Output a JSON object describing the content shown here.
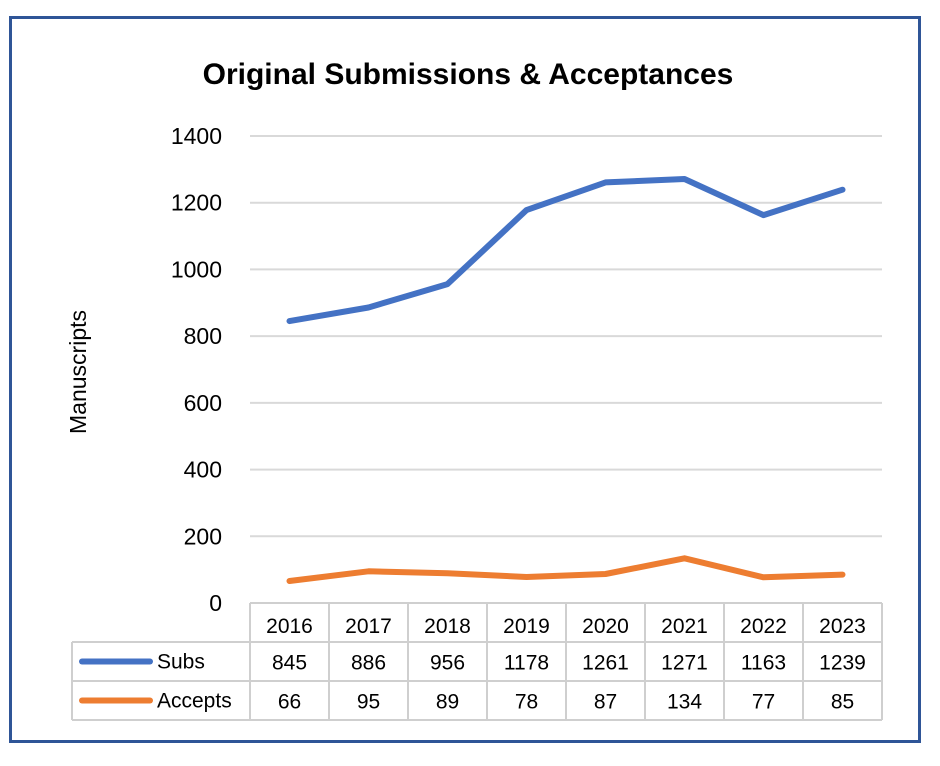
{
  "chart_data": {
    "type": "line",
    "title": "Original Submissions  & Acceptances",
    "ylabel": "Manuscripts",
    "xlabel": "",
    "ylim": [
      0,
      1400
    ],
    "yticks": [
      0,
      200,
      400,
      600,
      800,
      1000,
      1200,
      1400
    ],
    "grid": true,
    "legend": "data-table",
    "categories": [
      "2016",
      "2017",
      "2018",
      "2019",
      "2020",
      "2021",
      "2022",
      "2023"
    ],
    "series": [
      {
        "name": "Subs",
        "color": "#4472c4",
        "values": [
          845,
          886,
          956,
          1178,
          1261,
          1271,
          1163,
          1239
        ]
      },
      {
        "name": "Accepts",
        "color": "#ed7d31",
        "values": [
          66,
          95,
          89,
          78,
          87,
          134,
          77,
          85
        ]
      }
    ]
  }
}
